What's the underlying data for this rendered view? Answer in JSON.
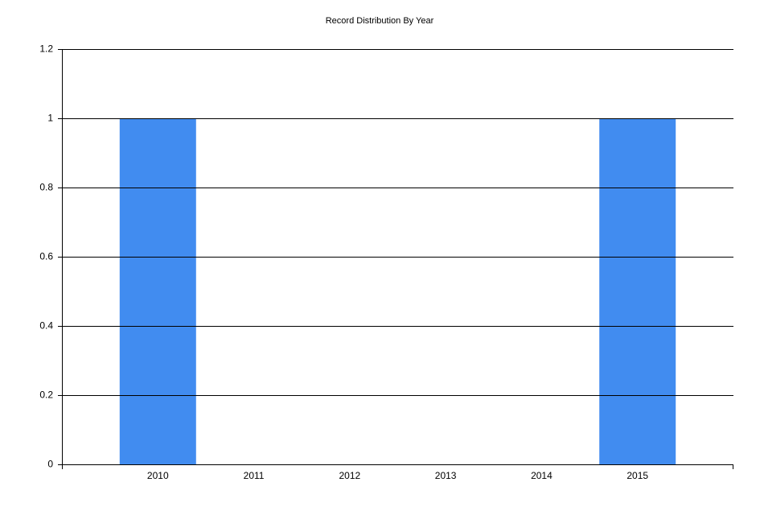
{
  "chart_data": {
    "type": "bar",
    "title": "Record Distribution By Year",
    "categories": [
      "2010",
      "2011",
      "2012",
      "2013",
      "2014",
      "2015"
    ],
    "values": [
      1,
      0,
      0,
      0,
      0,
      1
    ],
    "color": "#418cf0",
    "ylim": [
      0,
      1.2
    ],
    "yticks": [
      0,
      0.2,
      0.4,
      0.6,
      0.8,
      1,
      1.2
    ],
    "grid": true
  }
}
